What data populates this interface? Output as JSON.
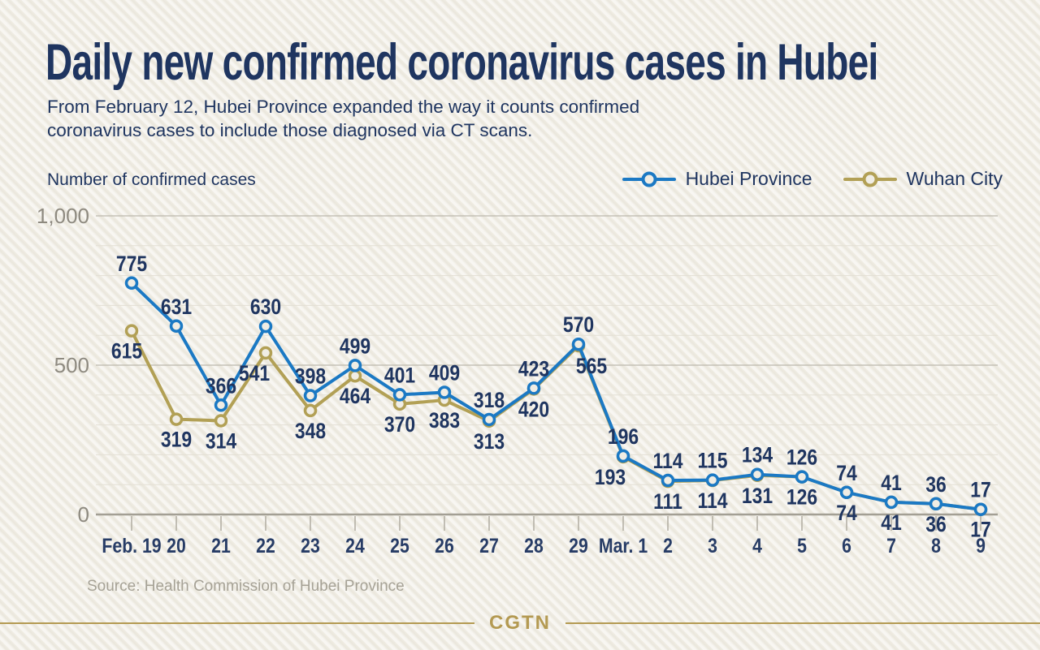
{
  "title": "Daily new confirmed coronavirus cases in Hubei",
  "subtitle_line1": "From February 12, Hubei Province expanded the way it counts confirmed",
  "subtitle_line2": "coronavirus cases to include those diagnosed via CT scans.",
  "axis_title": "Number of confirmed cases",
  "legend": [
    {
      "label": "Hubei Province",
      "color": "#1b79c4"
    },
    {
      "label": "Wuhan City",
      "color": "#b2a055"
    }
  ],
  "source": "Source: Health Commission of Hubei Province",
  "brand": "CGTN",
  "colors": {
    "background": "#f0ede4",
    "navy_text": "#1f3560",
    "hubei_blue": "#1b79c4",
    "wuhan_gold": "#b2a055",
    "grid_minor": "#e3dfd4",
    "grid_major": "#bcb8ad",
    "axis_line": "#a39f94",
    "ytick_gray": "#8e8a80",
    "source_gray": "#a6a296",
    "brand_gold": "#b49a52"
  },
  "chart_data": {
    "type": "line",
    "categories": [
      "Feb. 19",
      "20",
      "21",
      "22",
      "23",
      "24",
      "25",
      "26",
      "27",
      "28",
      "29",
      "Mar. 1",
      "2",
      "3",
      "4",
      "5",
      "6",
      "7",
      "8",
      "9"
    ],
    "series": [
      {
        "name": "Hubei Province",
        "color": "#1b79c4",
        "values": [
          775,
          631,
          366,
          630,
          398,
          499,
          401,
          409,
          318,
          423,
          570,
          196,
          114,
          115,
          134,
          126,
          74,
          41,
          36,
          17
        ]
      },
      {
        "name": "Wuhan City",
        "color": "#b2a055",
        "values": [
          615,
          319,
          314,
          541,
          348,
          464,
          370,
          383,
          313,
          420,
          565,
          193,
          111,
          114,
          131,
          126,
          74,
          41,
          36,
          17
        ]
      }
    ],
    "title": "Daily new confirmed coronavirus cases in Hubei",
    "xlabel": "",
    "ylabel": "Number of confirmed cases",
    "ylim": [
      0,
      1000
    ],
    "yticks": [
      {
        "value": 0,
        "label": "0"
      },
      {
        "value": 500,
        "label": "500"
      },
      {
        "value": 1000,
        "label": "1,000"
      }
    ],
    "minor_grid_step": 100,
    "grid": true,
    "legend_position": "top-right",
    "data_labels": true
  }
}
